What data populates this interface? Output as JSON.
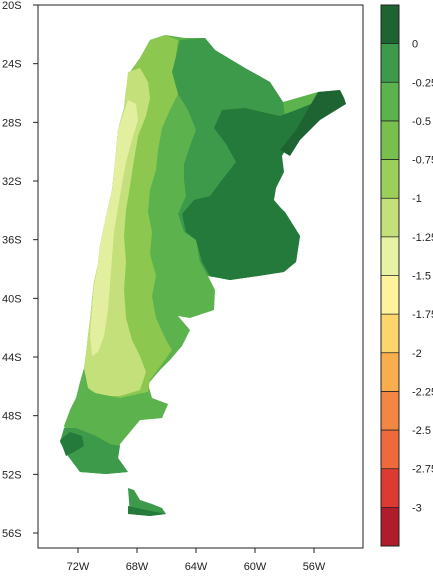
{
  "map": {
    "y_axis": {
      "ticks": [
        {
          "label": "20S",
          "lat": -20
        },
        {
          "label": "24S",
          "lat": -24
        },
        {
          "label": "28S",
          "lat": -28
        },
        {
          "label": "32S",
          "lat": -32
        },
        {
          "label": "36S",
          "lat": -36
        },
        {
          "label": "40S",
          "lat": -40
        },
        {
          "label": "44S",
          "lat": -44
        },
        {
          "label": "48S",
          "lat": -48
        },
        {
          "label": "52S",
          "lat": -52
        },
        {
          "label": "56S",
          "lat": -56
        }
      ]
    },
    "x_axis": {
      "ticks": [
        {
          "label": "72W",
          "lon": -72
        },
        {
          "label": "68W",
          "lon": -68
        },
        {
          "label": "64W",
          "lon": -64
        },
        {
          "label": "60W",
          "lon": -60
        },
        {
          "label": "56W",
          "lon": -56
        }
      ]
    },
    "lat_range": [
      -56.5,
      -20
    ],
    "lon_range": [
      -74.5,
      -52
    ],
    "region_colors": {
      "darkest": "#247a3a",
      "dark": "#3d9a4a",
      "mid": "#5cb24c",
      "light": "#8cc850",
      "pale": "#c4e07a",
      "palest": "#e2ef9e"
    }
  },
  "colorbar": {
    "levels": [
      {
        "label": "0",
        "color": "#247a3a"
      },
      {
        "label": "-0.25",
        "color": "#3d9a4a"
      },
      {
        "label": "-0.5",
        "color": "#5cb24c"
      },
      {
        "label": "-0.75",
        "color": "#78c04e"
      },
      {
        "label": "-1",
        "color": "#9ccf5a"
      },
      {
        "label": "-1.25",
        "color": "#c4e07a"
      },
      {
        "label": "-1.5",
        "color": "#e8f2a4"
      },
      {
        "label": "-1.75",
        "color": "#fcf39c"
      },
      {
        "label": "-2",
        "color": "#fcd66a"
      },
      {
        "label": "-2.25",
        "color": "#f9ae4e"
      },
      {
        "label": "-2.5",
        "color": "#f28744"
      },
      {
        "label": "-2.75",
        "color": "#ec6a3c"
      },
      {
        "label": "-3",
        "color": "#dd3a32"
      }
    ],
    "top_color": "#1e6432",
    "bottom_color": "#b01c2a"
  }
}
